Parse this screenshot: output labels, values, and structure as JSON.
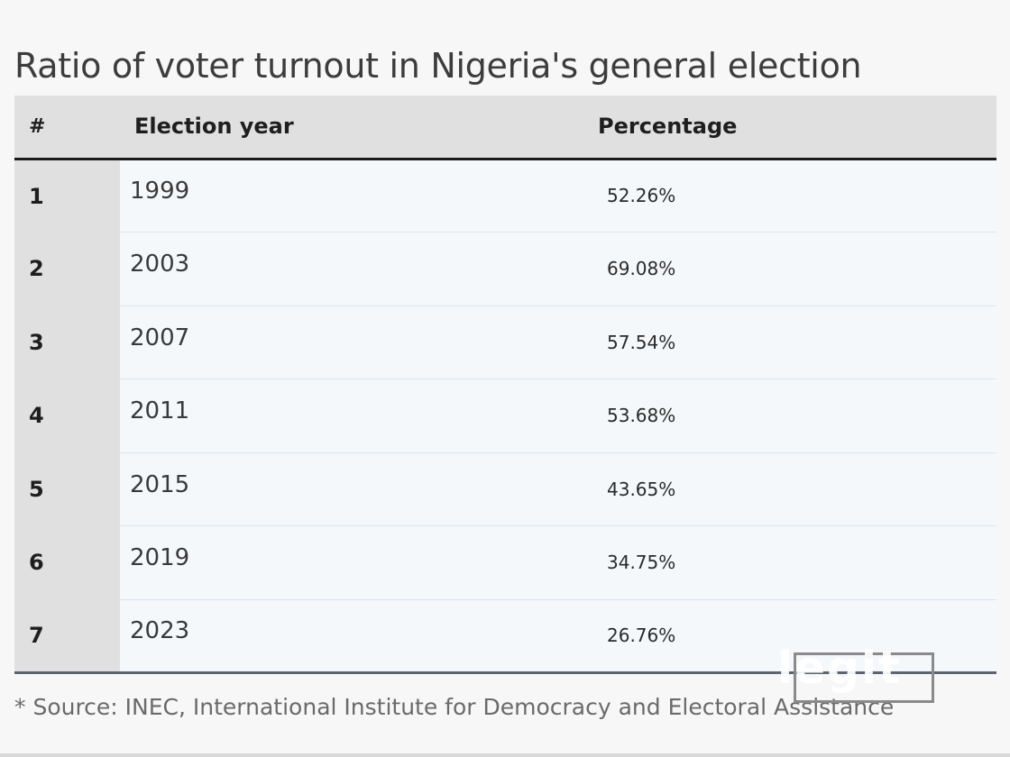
{
  "title": "Ratio of voter turnout in Nigeria's general election",
  "table": {
    "headers": {
      "num": "#",
      "year": "Election year",
      "percentage": "Percentage"
    },
    "rows": [
      {
        "num": "1",
        "year": "1999",
        "percentage": "52.26%"
      },
      {
        "num": "2",
        "year": "2003",
        "percentage": "69.08%"
      },
      {
        "num": "3",
        "year": "2007",
        "percentage": "57.54%"
      },
      {
        "num": "4",
        "year": "2011",
        "percentage": "53.68%"
      },
      {
        "num": "5",
        "year": "2015",
        "percentage": "43.65%"
      },
      {
        "num": "6",
        "year": "2019",
        "percentage": "34.75%"
      },
      {
        "num": "7",
        "year": "2023",
        "percentage": "26.76%"
      }
    ]
  },
  "footnote": "* Source: INEC, International Institute for Democracy and Electoral Assistance",
  "watermark": {
    "text": "legit",
    "icon": "legit-logo-icon"
  },
  "colors": {
    "header_bg": "#e0e0e0",
    "row_bg": "#f5f8fb",
    "header_rule": "#1a1a1a",
    "footer_rule": "#5c6470"
  }
}
